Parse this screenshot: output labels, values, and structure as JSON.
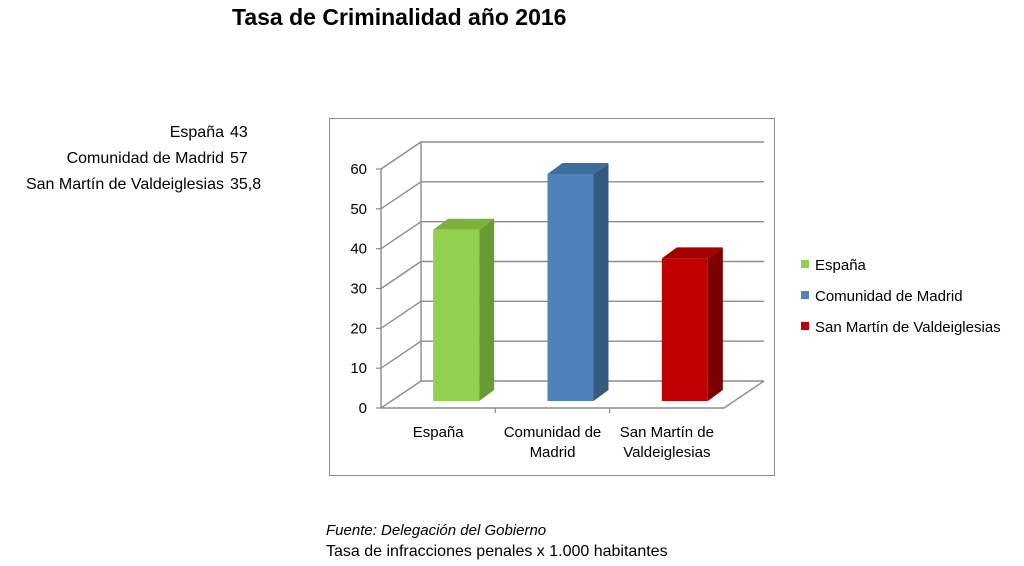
{
  "title": "Tasa de Criminalidad año 2016",
  "table": [
    {
      "label": "España",
      "value": "43"
    },
    {
      "label": "Comunidad de Madrid",
      "value": "57"
    },
    {
      "label": "San Martín de Valdeiglesias",
      "value": "35,8"
    }
  ],
  "chart_data": {
    "type": "bar",
    "style": "3d-column",
    "categories": [
      [
        "España"
      ],
      [
        "Comunidad de",
        "Madrid"
      ],
      [
        "San Martín de",
        "Valdeiglesias"
      ]
    ],
    "values": [
      43,
      57,
      35.8
    ],
    "colors": {
      "front": [
        "#92d050",
        "#4f81bd",
        "#c00000"
      ],
      "side": [
        "#6a9a35",
        "#36597f",
        "#7d0000"
      ],
      "top": [
        "#7cb23b",
        "#3e6c9d",
        "#a30000"
      ]
    },
    "legend": [
      "España",
      "Comunidad de Madrid",
      "San Martín de Valdeiglesias"
    ],
    "legend_position": "right",
    "ylim": [
      0,
      60
    ],
    "yticks": [
      "0",
      "10",
      "20",
      "30",
      "40",
      "50",
      "60"
    ],
    "grid": true
  },
  "source": "Fuente: Delegación del Gobierno",
  "note": "Tasa de infracciones penales x 1.000 habitantes"
}
